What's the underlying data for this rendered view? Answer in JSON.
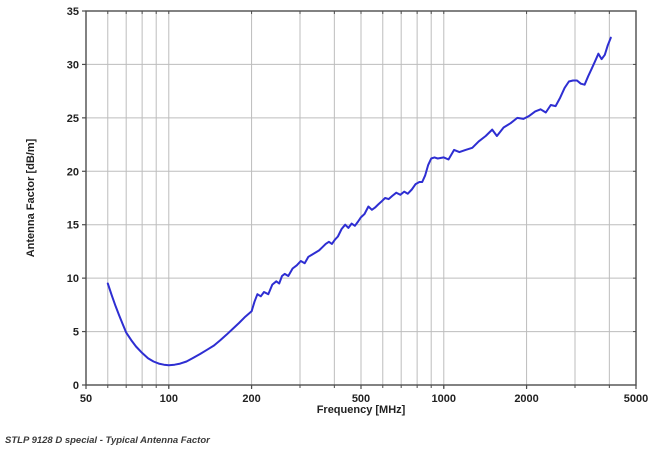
{
  "caption": {
    "text": "STLP 9128 D special - Typical Antenna Factor"
  },
  "chart_data": {
    "type": "line",
    "title": "",
    "xlabel": "Frequency [MHz]",
    "ylabel": "Antenna Factor [dB/m]",
    "x_scale": "log",
    "xlim": [
      50,
      5000
    ],
    "ylim": [
      0,
      35
    ],
    "grid": true,
    "legend_position": "none",
    "x_tick_labels": [
      50,
      100,
      200,
      500,
      1000,
      2000,
      5000
    ],
    "x_gridlines": [
      60,
      70,
      80,
      90,
      100,
      200,
      300,
      400,
      500,
      600,
      700,
      800,
      900,
      1000,
      2000,
      3000,
      4000,
      5000
    ],
    "y_ticks": [
      0,
      5,
      10,
      15,
      20,
      25,
      30,
      35
    ],
    "colors": {
      "line": "#2e2ed2",
      "grid": "#bdbdbd",
      "frame": "#4d4d4d",
      "text": "#222222"
    },
    "series": [
      {
        "name": "Typical Antenna Factor",
        "x": [
          60,
          62,
          64,
          66,
          68,
          70,
          73,
          76,
          80,
          84,
          88,
          92,
          96,
          100,
          105,
          110,
          116,
          122,
          130,
          138,
          146,
          154,
          162,
          170,
          180,
          190,
          200,
          205,
          210,
          216,
          222,
          230,
          238,
          246,
          252,
          258,
          264,
          272,
          282,
          292,
          302,
          312,
          322,
          332,
          342,
          352,
          362,
          372,
          382,
          392,
          402,
          412,
          425,
          438,
          450,
          462,
          475,
          488,
          500,
          515,
          532,
          548,
          562,
          578,
          595,
          612,
          630,
          650,
          672,
          695,
          718,
          740,
          765,
          790,
          815,
          835,
          855,
          878,
          900,
          925,
          950,
          1000,
          1040,
          1090,
          1140,
          1200,
          1270,
          1340,
          1420,
          1500,
          1560,
          1650,
          1750,
          1850,
          1950,
          2050,
          2150,
          2250,
          2350,
          2450,
          2550,
          2650,
          2750,
          2850,
          2950,
          3050,
          3150,
          3250,
          3350,
          3450,
          3550,
          3650,
          3750,
          3850,
          3950,
          4050
        ],
        "y": [
          9.5,
          8.4,
          7.4,
          6.5,
          5.7,
          4.9,
          4.2,
          3.6,
          3.0,
          2.5,
          2.2,
          2.0,
          1.9,
          1.85,
          1.9,
          2.0,
          2.2,
          2.5,
          2.9,
          3.3,
          3.7,
          4.2,
          4.7,
          5.2,
          5.8,
          6.4,
          6.9,
          7.8,
          8.5,
          8.3,
          8.7,
          8.5,
          9.4,
          9.7,
          9.5,
          10.2,
          10.4,
          10.2,
          10.9,
          11.2,
          11.6,
          11.4,
          12.0,
          12.2,
          12.4,
          12.6,
          12.9,
          13.2,
          13.4,
          13.2,
          13.6,
          13.9,
          14.6,
          15.0,
          14.7,
          15.1,
          14.9,
          15.3,
          15.7,
          16.0,
          16.7,
          16.4,
          16.6,
          16.9,
          17.2,
          17.5,
          17.4,
          17.7,
          18.0,
          17.8,
          18.1,
          17.9,
          18.3,
          18.8,
          19.0,
          19.0,
          19.6,
          20.6,
          21.2,
          21.3,
          21.2,
          21.3,
          21.1,
          22.0,
          21.8,
          22.0,
          22.2,
          22.8,
          23.3,
          23.9,
          23.3,
          24.1,
          24.5,
          25.0,
          24.9,
          25.2,
          25.6,
          25.8,
          25.5,
          26.2,
          26.1,
          26.9,
          27.8,
          28.4,
          28.5,
          28.5,
          28.2,
          28.1,
          28.9,
          29.6,
          30.3,
          31.0,
          30.5,
          30.9,
          31.8,
          32.5
        ]
      }
    ]
  }
}
